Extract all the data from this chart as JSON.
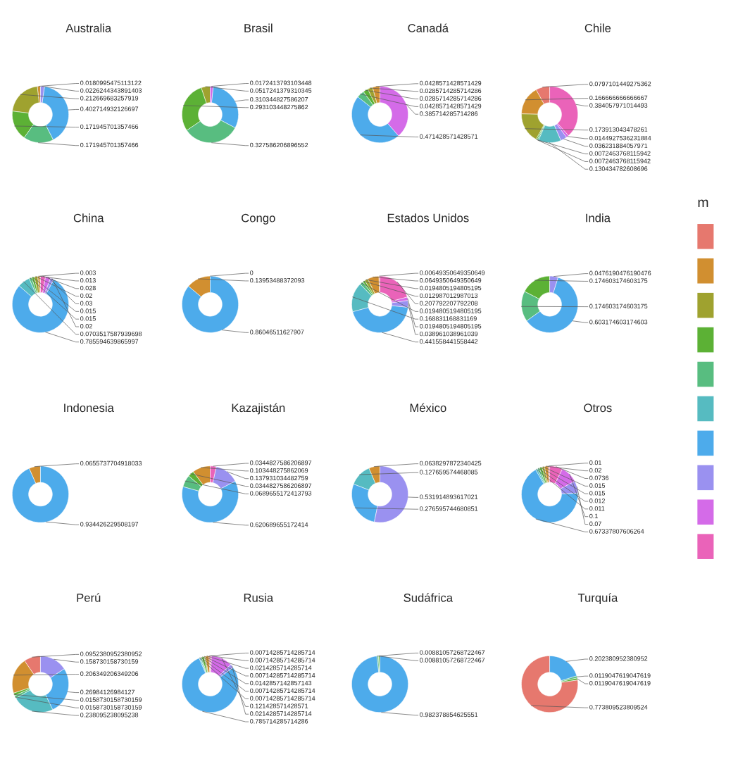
{
  "chart_data": [
    {
      "type": "donut",
      "title": "Australia",
      "categories": [
        null,
        null,
        null,
        null,
        null,
        null,
        null,
        null,
        null,
        null
      ],
      "colors": [
        "#e6786e",
        "#d18f30",
        "#9fa22f",
        "#5cb135",
        "#58bd80",
        "#56bbc1",
        "#4dabeb",
        "#9a91f0",
        "#d46be8",
        "#ea63b9"
      ],
      "data_labels": true,
      "values": [
        null,
        0.0180995475113122,
        0.212669683257919,
        0.171945701357466,
        0.171945701357466,
        null,
        0.402714932126697,
        0.0226244343891403,
        null,
        null
      ]
    },
    {
      "type": "donut",
      "title": "Brasil",
      "categories": [
        null,
        null,
        null,
        null,
        null,
        null,
        null,
        null,
        null,
        null
      ],
      "colors": [
        "#e6786e",
        "#d18f30",
        "#9fa22f",
        "#5cb135",
        "#58bd80",
        "#56bbc1",
        "#4dabeb",
        "#9a91f0",
        "#d46be8",
        "#ea63b9"
      ],
      "data_labels": true,
      "values": [
        null,
        null,
        0.0517241379310345,
        0.293103448275862,
        0.327586206896552,
        null,
        0.310344827586207,
        null,
        0.0172413793103448,
        null
      ]
    },
    {
      "type": "donut",
      "title": "Canadá",
      "categories": [
        null,
        null,
        null,
        null,
        null,
        null,
        null,
        null,
        null,
        null
      ],
      "colors": [
        "#e6786e",
        "#d18f30",
        "#9fa22f",
        "#5cb135",
        "#58bd80",
        "#56bbc1",
        "#4dabeb",
        "#9a91f0",
        "#d46be8",
        "#ea63b9"
      ],
      "data_labels": true,
      "values": [
        null,
        0.0428571428571429,
        0.0285714285714286,
        0.0285714285714286,
        0.0428571428571429,
        null,
        0.471428571428571,
        null,
        0.385714285714286,
        null
      ]
    },
    {
      "type": "donut",
      "title": "Chile",
      "categories": [
        null,
        null,
        null,
        null,
        null,
        null,
        null,
        null,
        null,
        null
      ],
      "colors": [
        "#e6786e",
        "#d18f30",
        "#9fa22f",
        "#5cb135",
        "#58bd80",
        "#56bbc1",
        "#4dabeb",
        "#9a91f0",
        "#d46be8",
        "#ea63b9"
      ],
      "data_labels": true,
      "values": [
        0.0797101449275362,
        0.166666666666667,
        0.173913043478261,
        0.0072463768115942,
        0.0072463768115942,
        0.130434782608696,
        null,
        0.036231884057971,
        0.0144927536231884,
        0.384057971014493
      ]
    },
    {
      "type": "donut",
      "title": "China",
      "categories": [
        null,
        null,
        null,
        null,
        null,
        null,
        null,
        null,
        null,
        null
      ],
      "colors": [
        "#e6786e",
        "#d18f30",
        "#9fa22f",
        "#5cb135",
        "#58bd80",
        "#56bbc1",
        "#4dabeb",
        "#9a91f0",
        "#d46be8",
        "#ea63b9"
      ],
      "data_labels": true,
      "values": [
        0.003,
        0.013,
        0.02,
        0.015,
        0.015,
        0.0703517587939698,
        0.785594639865997,
        0.02,
        0.03,
        0.028
      ]
    },
    {
      "type": "donut",
      "title": "Congo",
      "categories": [
        null,
        null,
        null,
        null,
        null,
        null,
        null,
        null,
        null,
        null
      ],
      "colors": [
        "#e6786e",
        "#d18f30",
        "#9fa22f",
        "#5cb135",
        "#58bd80",
        "#56bbc1",
        "#4dabeb",
        "#9a91f0",
        "#d46be8",
        "#ea63b9"
      ],
      "values": [
        0,
        0.13953488372093,
        null,
        null,
        null,
        null,
        0.86046511627907,
        null,
        null,
        null
      ],
      "value_labels": [
        "0",
        "0.13953488372093",
        null,
        null,
        null,
        null,
        "0.86046511627907",
        null,
        null,
        null
      ]
    },
    {
      "type": "donut",
      "title": "Estados Unidos",
      "categories": [
        null,
        null,
        null,
        null,
        null,
        null,
        null,
        null,
        null,
        null
      ],
      "colors": [
        "#e6786e",
        "#d18f30",
        "#9fa22f",
        "#5cb135",
        "#58bd80",
        "#56bbc1",
        "#4dabeb",
        "#9a91f0",
        "#d46be8",
        "#ea63b9"
      ],
      "data_labels": true,
      "values": [
        0.00649350649350649,
        0.0649350649350649,
        0.0194805194805195,
        0.012987012987013,
        0.0194805194805195,
        0.168831168831169,
        0.441558441558442,
        0.038961038961039,
        0.0194805194805195,
        0.207792207792208
      ]
    },
    {
      "type": "donut",
      "title": "India",
      "categories": [
        null,
        null,
        null,
        null,
        null,
        null,
        null,
        null,
        null,
        null
      ],
      "colors": [
        "#e6786e",
        "#d18f30",
        "#9fa22f",
        "#5cb135",
        "#58bd80",
        "#56bbc1",
        "#4dabeb",
        "#9a91f0",
        "#d46be8",
        "#ea63b9"
      ],
      "data_labels": true,
      "legend_title": "m",
      "values": [
        null,
        null,
        null,
        0.174603174603175,
        0.174603174603175,
        null,
        0.603174603174603,
        0.0476190476190476,
        null,
        null
      ]
    },
    {
      "type": "donut",
      "title": "Indonesia",
      "categories": [
        null,
        null,
        null,
        null,
        null,
        null,
        null,
        null,
        null,
        null
      ],
      "colors": [
        "#e6786e",
        "#d18f30",
        "#9fa22f",
        "#5cb135",
        "#58bd80",
        "#56bbc1",
        "#4dabeb",
        "#9a91f0",
        "#d46be8",
        "#ea63b9"
      ],
      "data_labels": true,
      "values": [
        null,
        0.0655737704918033,
        null,
        null,
        null,
        null,
        0.934426229508197,
        null,
        null,
        null
      ]
    },
    {
      "type": "donut",
      "title": "Kazajistán",
      "categories": [
        null,
        null,
        null,
        null,
        null,
        null,
        null,
        null,
        null,
        null
      ],
      "colors": [
        "#e6786e",
        "#d18f30",
        "#9fa22f",
        "#5cb135",
        "#58bd80",
        "#56bbc1",
        "#4dabeb",
        "#9a91f0",
        "#d46be8",
        "#ea63b9"
      ],
      "data_labels": true,
      "values": [
        null,
        0.103448275862069,
        null,
        0.0344827586206897,
        0.0689655172413793,
        null,
        0.620689655172414,
        0.137931034482759,
        null,
        0.0344827586206897
      ]
    },
    {
      "type": "donut",
      "title": "México",
      "categories": [
        null,
        null,
        null,
        null,
        null,
        null,
        null,
        null,
        null,
        null
      ],
      "colors": [
        "#e6786e",
        "#d18f30",
        "#9fa22f",
        "#5cb135",
        "#58bd80",
        "#56bbc1",
        "#4dabeb",
        "#9a91f0",
        "#d46be8",
        "#ea63b9"
      ],
      "data_labels": true,
      "values": [
        null,
        0.0638297872340425,
        null,
        null,
        null,
        0.127659574468085,
        0.276595744680851,
        0.531914893617021,
        null,
        null
      ]
    },
    {
      "type": "donut",
      "title": "Otros",
      "categories": [
        null,
        null,
        null,
        null,
        null,
        null,
        null,
        null,
        null,
        null
      ],
      "colors": [
        "#e6786e",
        "#d18f30",
        "#9fa22f",
        "#5cb135",
        "#58bd80",
        "#56bbc1",
        "#4dabeb",
        "#9a91f0",
        "#d46be8",
        "#ea63b9"
      ],
      "data_labels": true,
      "values": [
        0.01,
        0.02,
        0.015,
        0.015,
        0.012,
        0.011,
        0.67337807606264,
        0.07,
        0.1,
        0.0736
      ]
    },
    {
      "type": "donut",
      "title": "Perú",
      "categories": [
        null,
        null,
        null,
        null,
        null,
        null,
        null,
        null,
        null,
        null
      ],
      "colors": [
        "#e6786e",
        "#d18f30",
        "#9fa22f",
        "#5cb135",
        "#58bd80",
        "#56bbc1",
        "#4dabeb",
        "#9a91f0",
        "#d46be8",
        "#ea63b9"
      ],
      "data_labels": true,
      "values": [
        0.0952380952380952,
        0.206349206349206,
        null,
        0.0158730158730159,
        0.0158730158730159,
        0.238095238095238,
        0.26984126984127,
        0.158730158730159,
        null,
        null
      ]
    },
    {
      "type": "donut",
      "title": "Rusia",
      "categories": [
        null,
        null,
        null,
        null,
        null,
        null,
        null,
        null,
        null,
        null
      ],
      "colors": [
        "#e6786e",
        "#d18f30",
        "#9fa22f",
        "#5cb135",
        "#58bd80",
        "#56bbc1",
        "#4dabeb",
        "#9a91f0",
        "#d46be8",
        "#ea63b9"
      ],
      "data_labels": true,
      "values": [
        0.00714285714285714,
        0.0214285714285714,
        0.00714285714285714,
        0.0142857142857143,
        0.00714285714285714,
        0.00714285714285714,
        0.785714285714286,
        0.0214285714285714,
        0.121428571428571,
        0.00714285714285714
      ]
    },
    {
      "type": "donut",
      "title": "Sudáfrica",
      "categories": [
        null,
        null,
        null,
        null,
        null,
        null,
        null,
        null,
        null,
        null
      ],
      "colors": [
        "#e6786e",
        "#d18f30",
        "#9fa22f",
        "#5cb135",
        "#58bd80",
        "#56bbc1",
        "#4dabeb",
        "#9a91f0",
        "#d46be8",
        "#ea63b9"
      ],
      "data_labels": true,
      "values": [
        null,
        null,
        null,
        0.00881057268722467,
        0.00881057268722467,
        null,
        0.982378854625551,
        null,
        null,
        null
      ]
    },
    {
      "type": "donut",
      "title": "Turquía",
      "categories": [
        null,
        null,
        null,
        null,
        null,
        null,
        null,
        null,
        null,
        null
      ],
      "colors": [
        "#e6786e",
        "#d18f30",
        "#9fa22f",
        "#5cb135",
        "#58bd80",
        "#56bbc1",
        "#4dabeb",
        "#9a91f0",
        "#d46be8",
        "#ea63b9"
      ],
      "data_labels": true,
      "values": [
        0.773809523809524,
        null,
        null,
        0.0119047619047619,
        0.0119047619047619,
        null,
        0.202380952380952,
        null,
        null,
        null
      ]
    }
  ]
}
